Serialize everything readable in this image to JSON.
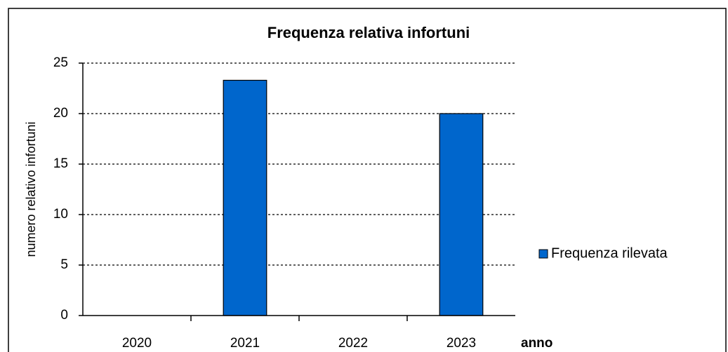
{
  "chart_data": {
    "type": "bar",
    "title": "Frequenza relativa infortuni",
    "x_label": "anno",
    "y_label": "numero relativo infortuni",
    "categories": [
      "2020",
      "2021",
      "2022",
      "2023"
    ],
    "series": [
      {
        "name": "Frequenza rilevata",
        "color": "#0066cc",
        "values": [
          0,
          23.3,
          0,
          20
        ]
      }
    ],
    "ylim": [
      0,
      25
    ],
    "yticks": [
      0,
      5,
      10,
      15,
      20,
      25
    ],
    "grid": true,
    "legend": "right"
  }
}
